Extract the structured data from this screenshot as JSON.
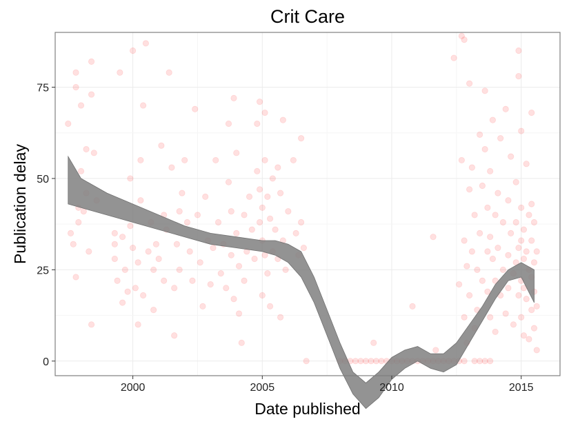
{
  "chart_data": {
    "type": "scatter",
    "title": "Crit Care",
    "xlabel": "Date published",
    "ylabel": "Publication delay",
    "x_unit": "year",
    "xlim": [
      1997.0,
      2016.5
    ],
    "ylim": [
      -4,
      90
    ],
    "x_ticks": [
      2000,
      2005,
      2010,
      2015
    ],
    "x_tick_labels": [
      "2000",
      "2005",
      "2010",
      "2015"
    ],
    "y_ticks": [
      0,
      25,
      50,
      75
    ],
    "y_tick_labels": [
      "0",
      "25",
      "50",
      "75"
    ],
    "grid": true,
    "legend": "none",
    "point_color": "#ff0000",
    "point_alpha": 0.12,
    "smooth_color": "#808080",
    "series": [
      {
        "type": "scatter",
        "points": [
          [
            1997.5,
            65
          ],
          [
            1997.6,
            35
          ],
          [
            1997.7,
            32
          ],
          [
            1997.8,
            79
          ],
          [
            1997.8,
            75
          ],
          [
            1997.8,
            23
          ],
          [
            1997.9,
            42
          ],
          [
            1997.9,
            38
          ],
          [
            1998.0,
            70
          ],
          [
            1998.0,
            52
          ],
          [
            1998.1,
            41
          ],
          [
            1998.2,
            58
          ],
          [
            1998.2,
            46
          ],
          [
            1998.3,
            30
          ],
          [
            1998.4,
            82
          ],
          [
            1998.4,
            73
          ],
          [
            1998.4,
            10
          ],
          [
            1998.5,
            57
          ],
          [
            1998.6,
            44
          ],
          [
            1999.3,
            35
          ],
          [
            1999.3,
            32
          ],
          [
            1999.3,
            28
          ],
          [
            1999.4,
            22
          ],
          [
            1999.5,
            79
          ],
          [
            1999.6,
            34
          ],
          [
            1999.6,
            16
          ],
          [
            1999.7,
            25
          ],
          [
            1999.8,
            19
          ],
          [
            1999.9,
            50
          ],
          [
            1999.9,
            37
          ],
          [
            2000.0,
            85
          ],
          [
            2000.0,
            31
          ],
          [
            2000.1,
            20
          ],
          [
            2000.2,
            27
          ],
          [
            2000.2,
            10
          ],
          [
            2000.3,
            55
          ],
          [
            2000.3,
            44
          ],
          [
            2000.4,
            70
          ],
          [
            2000.4,
            18
          ],
          [
            2000.5,
            87
          ],
          [
            2000.6,
            30
          ],
          [
            2000.7,
            38
          ],
          [
            2000.8,
            25
          ],
          [
            2000.8,
            14
          ],
          [
            2000.9,
            32
          ],
          [
            2001.0,
            28
          ],
          [
            2001.1,
            59
          ],
          [
            2001.2,
            40
          ],
          [
            2001.2,
            22
          ],
          [
            2001.3,
            36
          ],
          [
            2001.4,
            79
          ],
          [
            2001.5,
            53
          ],
          [
            2001.6,
            20
          ],
          [
            2001.6,
            7
          ],
          [
            2001.7,
            32
          ],
          [
            2001.8,
            41
          ],
          [
            2001.8,
            25
          ],
          [
            2001.9,
            46
          ],
          [
            2002.0,
            55
          ],
          [
            2002.1,
            38
          ],
          [
            2002.2,
            30
          ],
          [
            2002.3,
            22
          ],
          [
            2002.4,
            69
          ],
          [
            2002.5,
            40
          ],
          [
            2002.6,
            27
          ],
          [
            2002.7,
            15
          ],
          [
            2002.8,
            45
          ],
          [
            2002.9,
            33
          ],
          [
            2003.0,
            21
          ],
          [
            2003.1,
            31
          ],
          [
            2003.2,
            55
          ],
          [
            2003.3,
            38
          ],
          [
            2003.4,
            24
          ],
          [
            2003.5,
            32
          ],
          [
            2003.6,
            20
          ],
          [
            2003.7,
            65
          ],
          [
            2003.7,
            49
          ],
          [
            2003.8,
            41
          ],
          [
            2003.8,
            29
          ],
          [
            2003.9,
            72
          ],
          [
            2003.9,
            17
          ],
          [
            2004.0,
            57
          ],
          [
            2004.0,
            35
          ],
          [
            2004.1,
            26
          ],
          [
            2004.1,
            13
          ],
          [
            2004.2,
            5
          ],
          [
            2004.3,
            40
          ],
          [
            2004.3,
            22
          ],
          [
            2004.4,
            30
          ],
          [
            2004.5,
            45
          ],
          [
            2004.6,
            36
          ],
          [
            2004.7,
            28
          ],
          [
            2004.8,
            65
          ],
          [
            2004.8,
            52
          ],
          [
            2004.9,
            71
          ],
          [
            2004.9,
            47
          ],
          [
            2004.9,
            38
          ],
          [
            2005.0,
            42
          ],
          [
            2005.0,
            33
          ],
          [
            2005.0,
            18
          ],
          [
            2005.1,
            68
          ],
          [
            2005.1,
            55
          ],
          [
            2005.1,
            29
          ],
          [
            2005.2,
            45
          ],
          [
            2005.2,
            24
          ],
          [
            2005.3,
            39
          ],
          [
            2005.3,
            15
          ],
          [
            2005.4,
            50
          ],
          [
            2005.4,
            30
          ],
          [
            2005.5,
            36
          ],
          [
            2005.6,
            53
          ],
          [
            2005.6,
            28
          ],
          [
            2005.7,
            46
          ],
          [
            2005.7,
            12
          ],
          [
            2005.8,
            66
          ],
          [
            2005.8,
            33
          ],
          [
            2005.9,
            25
          ],
          [
            2006.0,
            41
          ],
          [
            2006.2,
            55
          ],
          [
            2006.3,
            35
          ],
          [
            2006.4,
            29
          ],
          [
            2006.5,
            61
          ],
          [
            2006.5,
            38
          ],
          [
            2006.6,
            31
          ],
          [
            2006.7,
            0
          ],
          [
            2008.0,
            0
          ],
          [
            2008.2,
            0
          ],
          [
            2008.4,
            0
          ],
          [
            2008.6,
            0
          ],
          [
            2008.8,
            0
          ],
          [
            2009.0,
            0
          ],
          [
            2009.2,
            0
          ],
          [
            2009.4,
            0
          ],
          [
            2009.6,
            0
          ],
          [
            2009.8,
            0
          ],
          [
            2010.0,
            0
          ],
          [
            2010.2,
            0
          ],
          [
            2010.4,
            0
          ],
          [
            2010.6,
            0
          ],
          [
            2010.8,
            0
          ],
          [
            2011.0,
            0
          ],
          [
            2011.2,
            0
          ],
          [
            2011.4,
            0
          ],
          [
            2011.6,
            0
          ],
          [
            2011.8,
            0
          ],
          [
            2012.0,
            0
          ],
          [
            2012.2,
            0
          ],
          [
            2012.4,
            0
          ],
          [
            2012.6,
            0
          ],
          [
            2012.8,
            0
          ],
          [
            2013.2,
            0
          ],
          [
            2013.4,
            0
          ],
          [
            2013.6,
            0
          ],
          [
            2013.8,
            0
          ],
          [
            2009.3,
            5
          ],
          [
            2010.8,
            15
          ],
          [
            2011.6,
            34
          ],
          [
            2011.7,
            3
          ],
          [
            2012.4,
            83
          ],
          [
            2012.6,
            21
          ],
          [
            2012.7,
            89
          ],
          [
            2012.7,
            55
          ],
          [
            2012.8,
            88
          ],
          [
            2012.8,
            33
          ],
          [
            2012.8,
            12
          ],
          [
            2012.9,
            26
          ],
          [
            2012.9,
            5
          ],
          [
            2013.0,
            76
          ],
          [
            2013.0,
            47
          ],
          [
            2013.0,
            18
          ],
          [
            2013.1,
            53
          ],
          [
            2013.1,
            30
          ],
          [
            2013.2,
            9
          ],
          [
            2013.2,
            40
          ],
          [
            2013.3,
            25
          ],
          [
            2013.3,
            14
          ],
          [
            2013.4,
            62
          ],
          [
            2013.4,
            35
          ],
          [
            2013.5,
            22
          ],
          [
            2013.5,
            48
          ],
          [
            2013.6,
            74
          ],
          [
            2013.6,
            58
          ],
          [
            2013.7,
            42
          ],
          [
            2013.7,
            30
          ],
          [
            2013.7,
            19
          ],
          [
            2013.8,
            52
          ],
          [
            2013.8,
            34
          ],
          [
            2013.8,
            12
          ],
          [
            2013.9,
            66
          ],
          [
            2013.9,
            28
          ],
          [
            2014.0,
            40
          ],
          [
            2014.0,
            22
          ],
          [
            2014.0,
            8
          ],
          [
            2014.1,
            46
          ],
          [
            2014.1,
            31
          ],
          [
            2014.2,
            18
          ],
          [
            2014.2,
            61
          ],
          [
            2014.3,
            38
          ],
          [
            2014.3,
            25
          ],
          [
            2014.4,
            13
          ],
          [
            2014.4,
            69
          ],
          [
            2014.5,
            44
          ],
          [
            2014.5,
            29
          ],
          [
            2014.5,
            20
          ],
          [
            2014.6,
            56
          ],
          [
            2014.6,
            35
          ],
          [
            2014.7,
            24
          ],
          [
            2014.7,
            10
          ],
          [
            2014.8,
            49
          ],
          [
            2014.8,
            38
          ],
          [
            2014.8,
            27
          ],
          [
            2014.9,
            85
          ],
          [
            2014.9,
            78
          ],
          [
            2014.9,
            31
          ],
          [
            2014.9,
            18
          ],
          [
            2015.0,
            63
          ],
          [
            2015.0,
            42
          ],
          [
            2015.0,
            33
          ],
          [
            2015.0,
            22
          ],
          [
            2015.0,
            12
          ],
          [
            2015.1,
            36
          ],
          [
            2015.1,
            28
          ],
          [
            2015.1,
            20
          ],
          [
            2015.1,
            7
          ],
          [
            2015.2,
            54
          ],
          [
            2015.2,
            30
          ],
          [
            2015.2,
            17
          ],
          [
            2015.3,
            40
          ],
          [
            2015.3,
            25
          ],
          [
            2015.3,
            6
          ],
          [
            2015.4,
            68
          ],
          [
            2015.4,
            43
          ],
          [
            2015.4,
            33
          ],
          [
            2015.4,
            23
          ],
          [
            2015.4,
            14
          ],
          [
            2015.5,
            38
          ],
          [
            2015.5,
            27
          ],
          [
            2015.5,
            19
          ],
          [
            2015.5,
            9
          ],
          [
            2015.6,
            30
          ],
          [
            2015.6,
            15
          ],
          [
            2015.6,
            3
          ]
        ]
      },
      {
        "type": "smooth",
        "x": [
          1997.5,
          1998.0,
          1999.0,
          2000.0,
          2001.0,
          2002.0,
          2003.0,
          2004.0,
          2005.0,
          2005.5,
          2006.0,
          2006.5,
          2007.0,
          2007.5,
          2008.0,
          2008.5,
          2009.0,
          2009.5,
          2010.0,
          2010.5,
          2011.0,
          2011.5,
          2012.0,
          2012.5,
          2013.0,
          2013.5,
          2014.0,
          2014.5,
          2015.0,
          2015.5
        ],
        "lower": [
          43,
          42,
          40,
          38,
          36,
          34,
          32,
          31,
          30,
          29,
          27,
          23,
          16,
          7,
          -2,
          -9,
          -13,
          -10,
          -5,
          -2,
          0,
          -2,
          -3,
          -1,
          5,
          11,
          17,
          22,
          23,
          16
        ],
        "upper": [
          56,
          50,
          46,
          43,
          40,
          37,
          35,
          34,
          33,
          33,
          32,
          30,
          23,
          14,
          5,
          -3,
          -6,
          -3,
          1,
          3,
          4,
          2,
          2,
          5,
          10,
          15,
          21,
          25,
          27,
          25
        ]
      }
    ]
  }
}
